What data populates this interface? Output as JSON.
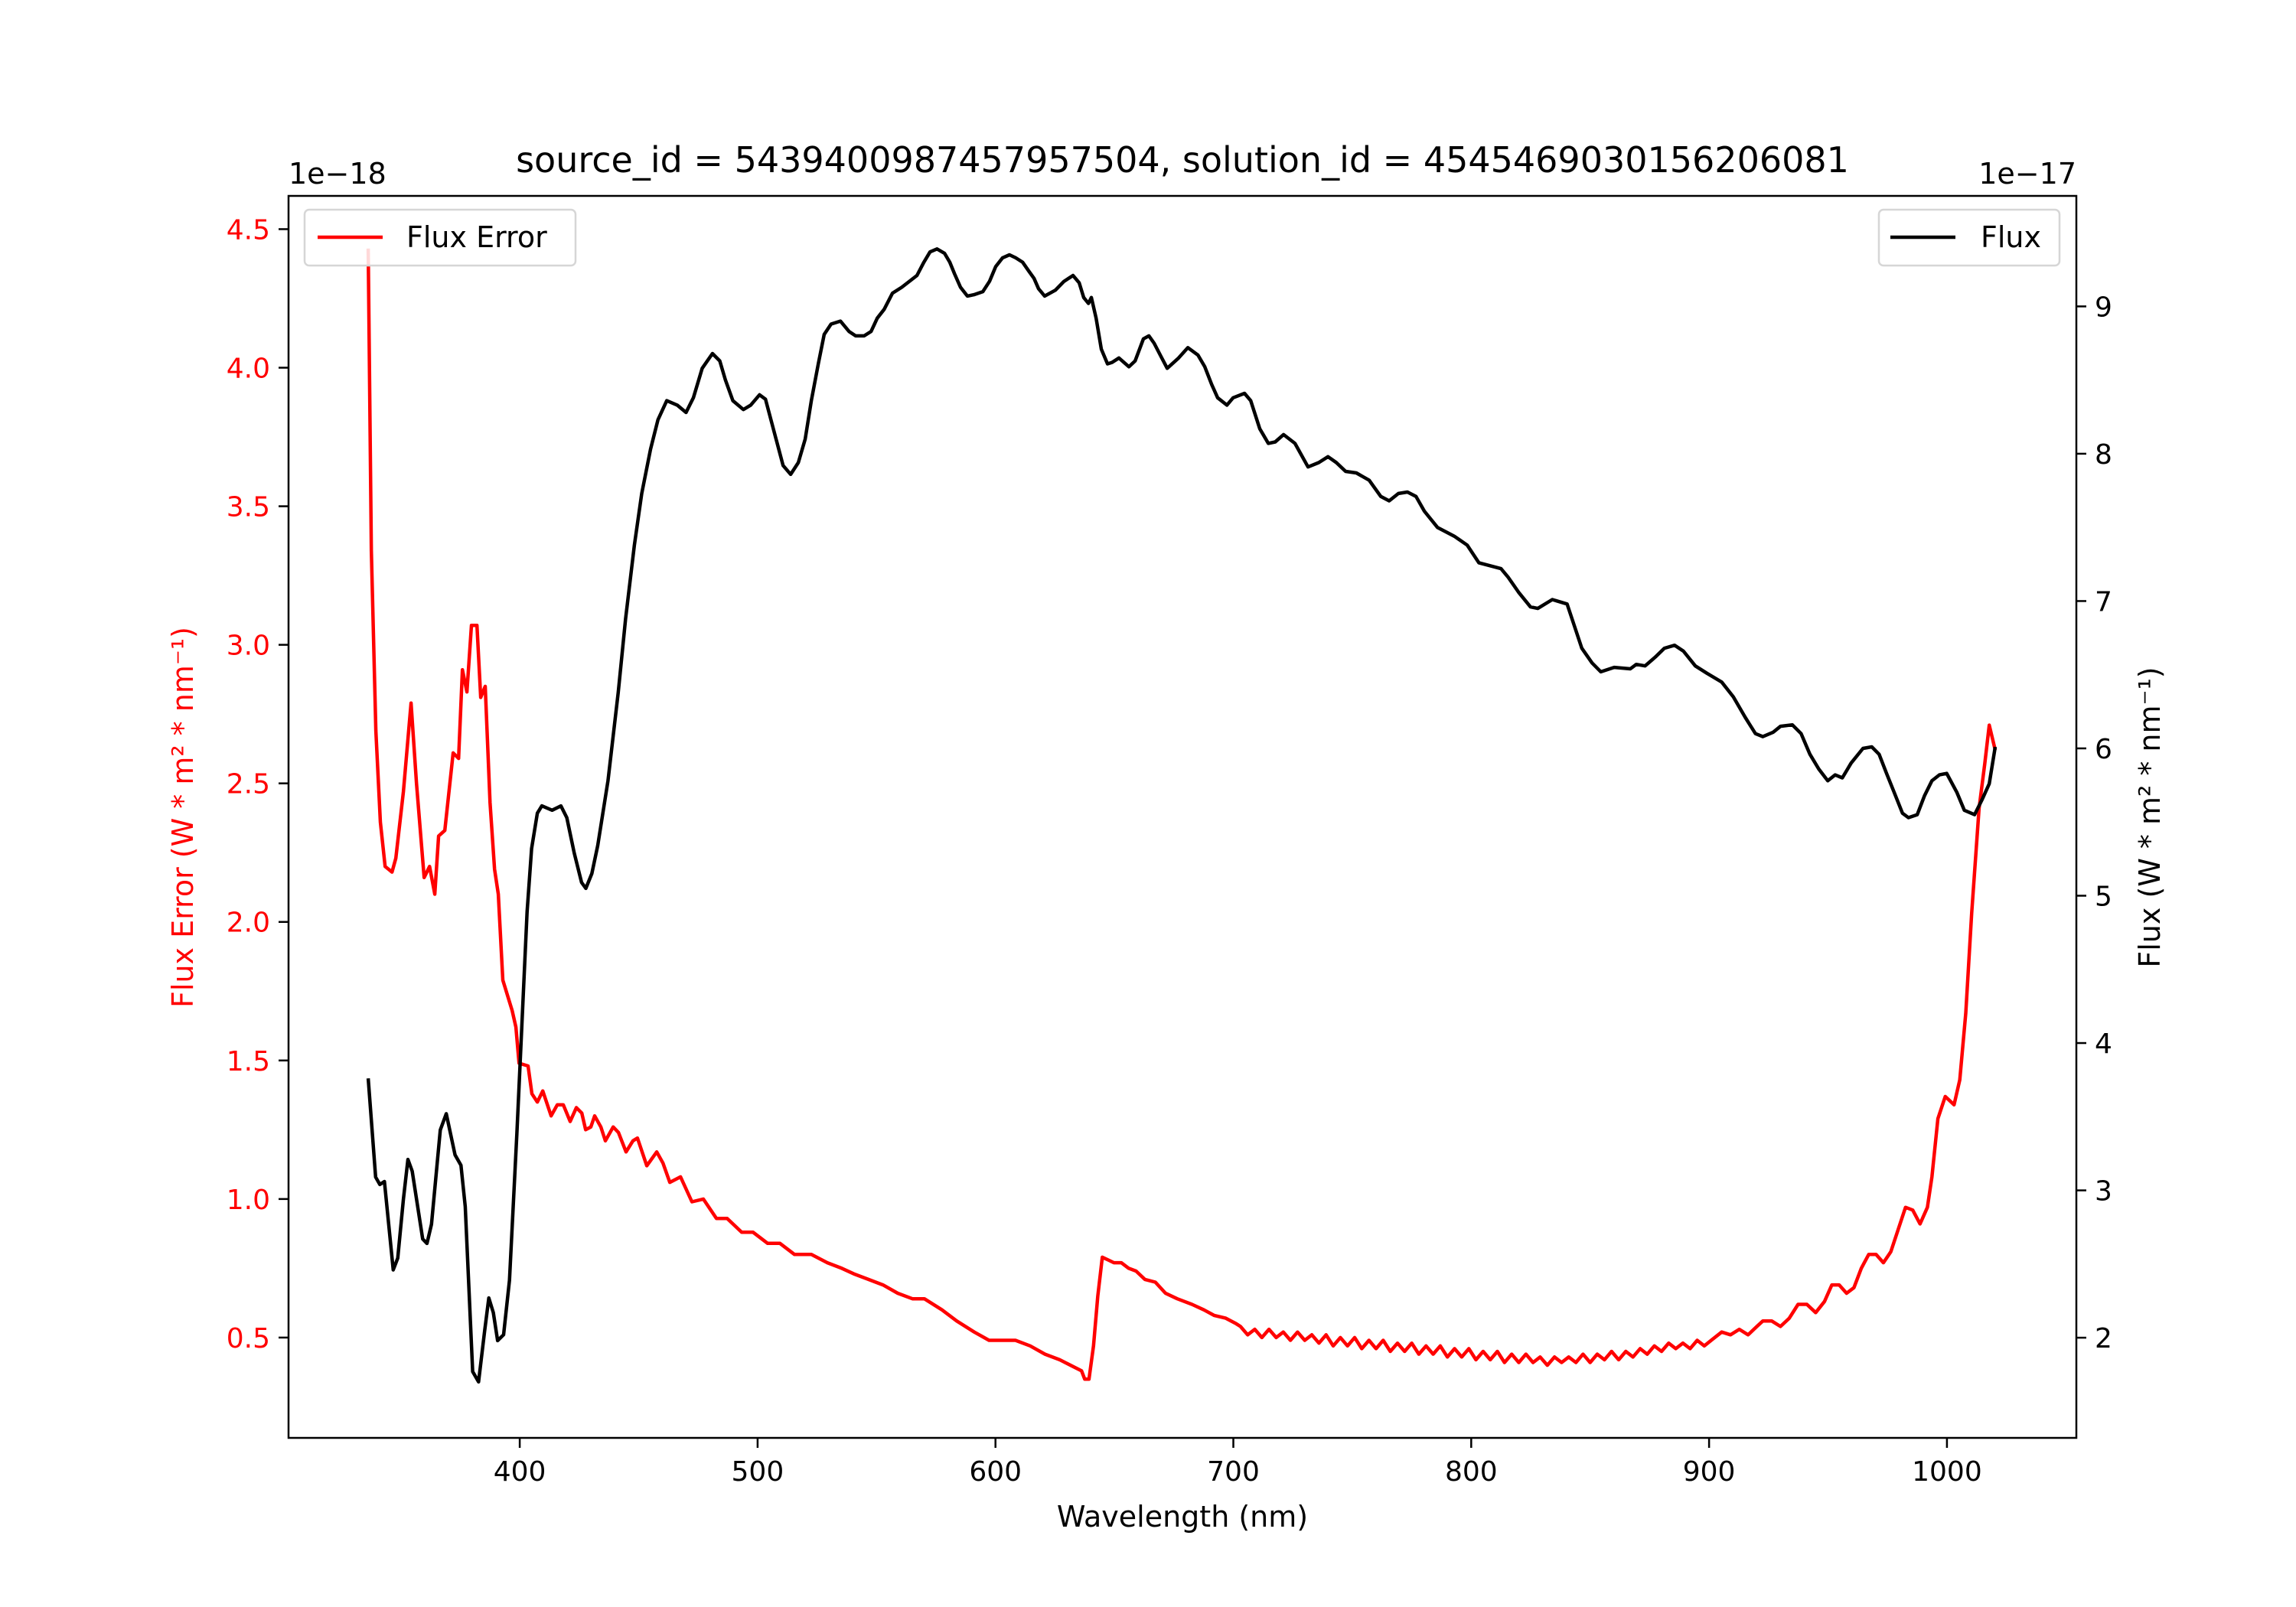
{
  "chart_data": {
    "type": "line",
    "title": "source_id = 5439400987457957504, solution_id = 4545469030156206081",
    "xlabel": "Wavelength (nm)",
    "xlim": [
      302.8,
      1054.4
    ],
    "xticks": [
      400,
      500,
      600,
      700,
      800,
      900,
      1000
    ],
    "left_axis": {
      "label": "Flux Error (W * m² * nm⁻¹)",
      "offset_text": "1e−18",
      "ylim": [
        0.138,
        4.62
      ],
      "ticks": [
        0.5,
        1.0,
        1.5,
        2.0,
        2.5,
        3.0,
        3.5,
        4.0,
        4.5
      ],
      "tick_labels": [
        "0.5",
        "1.0",
        "1.5",
        "2.0",
        "2.5",
        "3.0",
        "3.5",
        "4.0",
        "4.5"
      ],
      "color": "#ff0000"
    },
    "right_axis": {
      "label": "Flux (W * m² * nm⁻¹)",
      "offset_text": "1e−17",
      "ylim": [
        1.32,
        9.75
      ],
      "ticks": [
        2,
        3,
        4,
        5,
        6,
        7,
        8,
        9
      ],
      "tick_labels": [
        "2",
        "3",
        "4",
        "5",
        "6",
        "7",
        "8",
        "9"
      ],
      "color": "#000000"
    },
    "series": [
      {
        "name": "Flux Error",
        "axis": "left",
        "color": "#ff0000",
        "legend": "top-left",
        "x": [
          336.3,
          337.6,
          339.5,
          341.4,
          343.4,
          346.3,
          347.9,
          351.1,
          354.3,
          356.6,
          359.8,
          362.1,
          364.3,
          365.9,
          368.5,
          372,
          374.3,
          375.9,
          377.8,
          379.7,
          382,
          383.6,
          385.5,
          387.5,
          389.4,
          391,
          392.9,
          396.8,
          398.4,
          399.7,
          403.5,
          405.1,
          407.4,
          409.7,
          413.2,
          415.8,
          418.3,
          421.2,
          423.8,
          426.1,
          427.7,
          429.9,
          431.5,
          434.1,
          436,
          439.3,
          441.5,
          444.7,
          447.6,
          449.5,
          453.4,
          457.6,
          460.2,
          463.1,
          467.6,
          472.4,
          477.2,
          482.7,
          487.2,
          493.3,
          498.1,
          504.2,
          509.4,
          515.5,
          522.6,
          529.3,
          535.4,
          540.4,
          546.6,
          552.7,
          558.9,
          565.1,
          570.1,
          577.5,
          583.7,
          591.1,
          597.3,
          602.2,
          608.4,
          614.6,
          620.8,
          627,
          636.2,
          637.5,
          639.3,
          641.2,
          643,
          644.9,
          647.4,
          649.8,
          652.9,
          656,
          659.1,
          662.8,
          667.2,
          671.5,
          676.4,
          682.6,
          687.6,
          691.9,
          696.8,
          701.2,
          703,
          706,
          709,
          712,
          715,
          718,
          721,
          724,
          727,
          730,
          733,
          736,
          739,
          742,
          745,
          748,
          751,
          754,
          757,
          760,
          763,
          766,
          769,
          772,
          775,
          778,
          781,
          784,
          787,
          790,
          793,
          796,
          799,
          802,
          805,
          808,
          811,
          814,
          817,
          820,
          823,
          826,
          829,
          832,
          835,
          838,
          841,
          844,
          847,
          850,
          853,
          856,
          859,
          862,
          865,
          868,
          871,
          874,
          877,
          880,
          883,
          886,
          889,
          892,
          895,
          898,
          900.9,
          905.3,
          909,
          912.7,
          916.4,
          920.1,
          922.6,
          926.3,
          930,
          933.7,
          937.4,
          941.1,
          944.8,
          948.5,
          951.6,
          954.7,
          957.8,
          960.9,
          964,
          967.1,
          970.2,
          973.3,
          976.4,
          979.5,
          982.6,
          985.6,
          988.7,
          991.8,
          993.7,
          996.2,
          999.3,
          1003,
          1005.4,
          1007.9,
          1010.4,
          1013.5,
          1015.9,
          1017.8,
          1020.3
        ],
        "y": [
          4.43,
          3.34,
          2.69,
          2.36,
          2.2,
          2.18,
          2.23,
          2.47,
          2.79,
          2.5,
          2.16,
          2.2,
          2.1,
          2.31,
          2.33,
          2.61,
          2.59,
          2.91,
          2.83,
          3.07,
          3.07,
          2.81,
          2.85,
          2.43,
          2.19,
          2.1,
          1.79,
          1.68,
          1.62,
          1.49,
          1.48,
          1.38,
          1.35,
          1.39,
          1.3,
          1.34,
          1.34,
          1.28,
          1.33,
          1.31,
          1.25,
          1.26,
          1.3,
          1.26,
          1.21,
          1.26,
          1.24,
          1.17,
          1.21,
          1.22,
          1.12,
          1.17,
          1.13,
          1.06,
          1.08,
          0.99,
          1.0,
          0.93,
          0.93,
          0.88,
          0.88,
          0.84,
          0.84,
          0.8,
          0.8,
          0.77,
          0.75,
          0.73,
          0.71,
          0.69,
          0.66,
          0.64,
          0.64,
          0.6,
          0.56,
          0.52,
          0.49,
          0.49,
          0.49,
          0.47,
          0.44,
          0.42,
          0.38,
          0.35,
          0.35,
          0.47,
          0.65,
          0.79,
          0.78,
          0.77,
          0.77,
          0.75,
          0.74,
          0.71,
          0.7,
          0.66,
          0.64,
          0.62,
          0.6,
          0.58,
          0.57,
          0.55,
          0.54,
          0.51,
          0.53,
          0.5,
          0.53,
          0.5,
          0.52,
          0.49,
          0.52,
          0.49,
          0.51,
          0.48,
          0.51,
          0.47,
          0.5,
          0.47,
          0.5,
          0.46,
          0.49,
          0.46,
          0.49,
          0.45,
          0.48,
          0.45,
          0.48,
          0.44,
          0.47,
          0.44,
          0.47,
          0.43,
          0.46,
          0.43,
          0.46,
          0.42,
          0.45,
          0.42,
          0.45,
          0.41,
          0.44,
          0.41,
          0.44,
          0.41,
          0.43,
          0.4,
          0.43,
          0.41,
          0.43,
          0.41,
          0.44,
          0.41,
          0.44,
          0.42,
          0.45,
          0.42,
          0.45,
          0.43,
          0.46,
          0.44,
          0.47,
          0.45,
          0.48,
          0.46,
          0.48,
          0.46,
          0.49,
          0.47,
          0.49,
          0.52,
          0.51,
          0.53,
          0.51,
          0.54,
          0.56,
          0.56,
          0.54,
          0.57,
          0.62,
          0.62,
          0.59,
          0.63,
          0.69,
          0.69,
          0.66,
          0.68,
          0.75,
          0.8,
          0.8,
          0.77,
          0.81,
          0.89,
          0.97,
          0.96,
          0.91,
          0.97,
          1.08,
          1.29,
          1.37,
          1.34,
          1.43,
          1.67,
          2.03,
          2.41,
          2.57,
          2.71,
          2.62
        ]
      },
      {
        "name": "Flux",
        "axis": "right",
        "color": "#000000",
        "legend": "top-right",
        "x": [
          336.3,
          339.4,
          341.2,
          343.1,
          346.8,
          348.7,
          351.1,
          353,
          354.8,
          359.2,
          361,
          362.9,
          366.6,
          369.1,
          372.8,
          375.3,
          377.1,
          380.2,
          382.7,
          385.2,
          387,
          388.9,
          390.7,
          393.2,
          395.7,
          398.8,
          403.1,
          405,
          407.4,
          409.3,
          413.6,
          417.3,
          419.8,
          422.9,
          426,
          427.8,
          430.3,
          432.8,
          437.1,
          441.4,
          444.5,
          448.2,
          451.3,
          455,
          458.1,
          461.8,
          466.2,
          469.9,
          473,
          476.7,
          481,
          484.1,
          486.5,
          489.6,
          494,
          497.1,
          500.8,
          503.3,
          510.7,
          513.9,
          517.1,
          520,
          522.6,
          525.5,
          528,
          530.9,
          534.8,
          538.4,
          541.2,
          544.8,
          547.7,
          550.3,
          553.2,
          556.7,
          560.6,
          567,
          569.9,
          572.5,
          575.4,
          578.6,
          580.8,
          582.8,
          585.3,
          588.2,
          591.1,
          594.7,
          597.5,
          600.1,
          603,
          605.9,
          608.5,
          611.4,
          614,
          616.2,
          618.1,
          620.7,
          625.2,
          628.8,
          632.6,
          635.2,
          637.1,
          639.1,
          640.3,
          642.3,
          644.5,
          647.1,
          649,
          651.9,
          656.1,
          658.7,
          662.2,
          664.5,
          666.7,
          669.6,
          672.2,
          677,
          680.9,
          685.1,
          688,
          690.9,
          693.4,
          697.3,
          699.9,
          704.7,
          707.3,
          711.1,
          714.7,
          717.6,
          721.1,
          725.9,
          731.4,
          735.9,
          739.8,
          743.3,
          747.2,
          751.7,
          757.1,
          762,
          765.5,
          769.4,
          773.2,
          776.8,
          780.3,
          785.8,
          792.9,
          798.3,
          803.2,
          812.5,
          815.6,
          819.9,
          824.9,
          828,
          834.1,
          840.3,
          843.4,
          846.5,
          850.8,
          854.5,
          860.1,
          866.9,
          869.4,
          873.1,
          877.4,
          881.2,
          885.5,
          889.2,
          894.2,
          899.1,
          905.3,
          910.2,
          915.2,
          919.5,
          922.6,
          927,
          930,
          935,
          938.7,
          942.4,
          946.1,
          949.9,
          953,
          956,
          959.7,
          964.7,
          968.4,
          971.5,
          974.6,
          977.6,
          981.3,
          983.8,
          987.5,
          990.6,
          993.7,
          996.8,
          999.9,
          1004.2,
          1007.3,
          1011.6,
          1014.7,
          1017.8,
          1020.3
        ],
        "y": [
          3.76,
          3.09,
          3.04,
          3.06,
          2.46,
          2.54,
          2.94,
          3.21,
          3.13,
          2.67,
          2.64,
          2.77,
          3.41,
          3.52,
          3.24,
          3.17,
          2.89,
          1.77,
          1.7,
          2.04,
          2.27,
          2.17,
          1.98,
          2.02,
          2.39,
          3.39,
          4.89,
          5.32,
          5.56,
          5.61,
          5.58,
          5.61,
          5.53,
          5.29,
          5.09,
          5.05,
          5.15,
          5.34,
          5.78,
          6.38,
          6.88,
          7.38,
          7.73,
          8.03,
          8.23,
          8.36,
          8.33,
          8.28,
          8.38,
          8.58,
          8.68,
          8.63,
          8.5,
          8.36,
          8.3,
          8.33,
          8.4,
          8.37,
          7.92,
          7.86,
          7.94,
          8.1,
          8.36,
          8.61,
          8.81,
          8.88,
          8.9,
          8.83,
          8.8,
          8.8,
          8.83,
          8.92,
          8.98,
          9.09,
          9.13,
          9.21,
          9.3,
          9.37,
          9.39,
          9.36,
          9.3,
          9.22,
          9.13,
          9.07,
          9.08,
          9.1,
          9.17,
          9.27,
          9.33,
          9.35,
          9.33,
          9.3,
          9.24,
          9.19,
          9.12,
          9.07,
          9.11,
          9.17,
          9.21,
          9.16,
          9.06,
          9.02,
          9.06,
          8.92,
          8.71,
          8.61,
          8.62,
          8.65,
          8.59,
          8.63,
          8.78,
          8.8,
          8.75,
          8.66,
          8.58,
          8.65,
          8.72,
          8.67,
          8.59,
          8.47,
          8.38,
          8.33,
          8.38,
          8.41,
          8.36,
          8.17,
          8.07,
          8.08,
          8.13,
          8.07,
          7.91,
          7.94,
          7.98,
          7.94,
          7.88,
          7.87,
          7.82,
          7.71,
          7.68,
          7.73,
          7.74,
          7.71,
          7.61,
          7.5,
          7.44,
          7.38,
          7.26,
          7.22,
          7.16,
          7.06,
          6.96,
          6.95,
          7.01,
          6.98,
          6.83,
          6.68,
          6.58,
          6.52,
          6.55,
          6.54,
          6.57,
          6.56,
          6.62,
          6.68,
          6.7,
          6.66,
          6.56,
          6.51,
          6.45,
          6.35,
          6.21,
          6.1,
          6.08,
          6.11,
          6.15,
          6.16,
          6.1,
          5.96,
          5.86,
          5.78,
          5.82,
          5.8,
          5.9,
          6.0,
          6.01,
          5.96,
          5.83,
          5.71,
          5.56,
          5.53,
          5.55,
          5.68,
          5.78,
          5.82,
          5.83,
          5.7,
          5.58,
          5.55,
          5.65,
          5.76,
          6.01
        ]
      }
    ],
    "grid": false
  }
}
